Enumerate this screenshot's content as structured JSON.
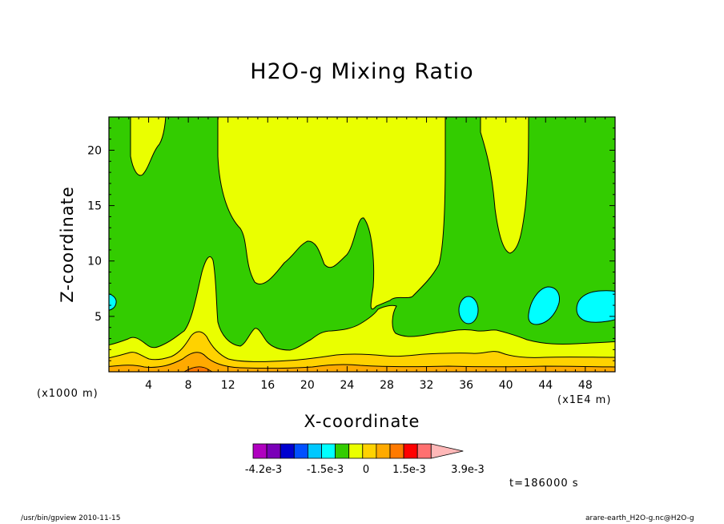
{
  "chart_data": {
    "type": "heatmap",
    "title": "H2O-g Mixing Ratio",
    "xlabel": "X-coordinate",
    "ylabel": "Z-coordinate",
    "x_unit_note": "(x1E4 m)",
    "y_unit_note": "(x1000 m)",
    "xlim": [
      0,
      51
    ],
    "ylim": [
      0,
      23
    ],
    "x_ticks": [
      4,
      8,
      12,
      16,
      20,
      24,
      28,
      32,
      36,
      40,
      44,
      48
    ],
    "y_ticks": [
      5,
      10,
      15,
      20
    ],
    "time_label": "t=186000 s",
    "colorbar": {
      "colors": [
        "#b000c0",
        "#7a00b8",
        "#0000d0",
        "#0050ff",
        "#00c8ff",
        "#00ffff",
        "#33cc00",
        "#eaff00",
        "#ffd200",
        "#ffaa00",
        "#ff7a00",
        "#ff0000",
        "#ff7070",
        "#ffb8b8"
      ],
      "labels": [
        "-4.2e-3",
        "-1.5e-3",
        "0",
        "1.5e-3",
        "3.9e-3"
      ],
      "label_values": [
        -0.0042,
        -0.0015,
        0,
        0.0015,
        0.0039
      ]
    },
    "contour_regions": [
      {
        "level_color": "#33cc00",
        "description_value": 0.0003,
        "kind": "background"
      },
      {
        "level_color": "#eaff00",
        "description_value": 0.0008
      },
      {
        "level_color": "#ffd200",
        "description_value": 0.0012
      },
      {
        "level_color": "#ffaa00",
        "description_value": 0.0015
      },
      {
        "level_color": "#00ffff",
        "description_value": -0.0003
      }
    ]
  },
  "footer": {
    "left": "/usr/bin/gpview  2010-11-15",
    "right": "arare-earth_H2O-g.nc@H2O-g"
  }
}
